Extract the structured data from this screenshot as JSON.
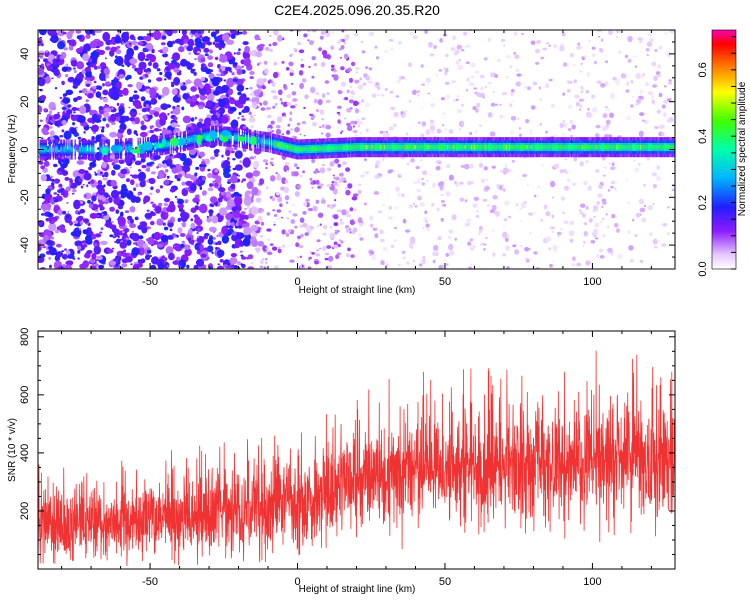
{
  "title": "C2E4.2025.096.20.35.R20",
  "chart_data": [
    {
      "type": "heatmap",
      "xlabel": "Height of straight line (km)",
      "ylabel": "Frequency (Hz)",
      "xlim": [
        -88,
        128
      ],
      "ylim": [
        -50,
        50
      ],
      "xticks": [
        -50,
        0,
        50,
        100
      ],
      "yticks": [
        -40,
        -20,
        0,
        20,
        40
      ],
      "grid": false,
      "colorbar": {
        "label": "Normalized spectral amplitude",
        "range": [
          0,
          0.72
        ],
        "ticks": [
          0.0,
          0.2,
          0.4,
          0.6
        ]
      },
      "ridge": {
        "description_points": [
          {
            "x": -65,
            "y": 0
          },
          {
            "x": -50,
            "y": 1
          },
          {
            "x": -40,
            "y": 3
          },
          {
            "x": -30,
            "y": 6
          },
          {
            "x": -20,
            "y": 5
          },
          {
            "x": -10,
            "y": 3
          },
          {
            "x": 0,
            "y": 0
          },
          {
            "x": 20,
            "y": 1
          },
          {
            "x": 50,
            "y": 1
          },
          {
            "x": 100,
            "y": 1
          },
          {
            "x": 128,
            "y": 1
          }
        ],
        "peak_amplitude": 0.7
      }
    },
    {
      "type": "line",
      "xlabel": "Height of straight line (km)",
      "ylabel": "SNR (10 * v/v)",
      "xlim": [
        -88,
        128
      ],
      "ylim": [
        0,
        820
      ],
      "xticks": [
        -50,
        0,
        50,
        100
      ],
      "yticks": [
        200,
        400,
        600,
        800
      ],
      "color": "#f03232",
      "grid": false,
      "trend": {
        "x": [
          -88,
          -60,
          -30,
          0,
          20,
          40,
          60,
          80,
          100,
          128
        ],
        "mean": [
          150,
          155,
          190,
          230,
          300,
          340,
          350,
          360,
          370,
          385
        ],
        "spread": [
          100,
          100,
          115,
          130,
          145,
          150,
          155,
          160,
          165,
          165
        ],
        "max": [
          360,
          380,
          430,
          470,
          660,
          700,
          690,
          700,
          760,
          810
        ],
        "min": [
          20,
          10,
          15,
          30,
          60,
          70,
          80,
          60,
          90,
          120
        ]
      }
    }
  ]
}
